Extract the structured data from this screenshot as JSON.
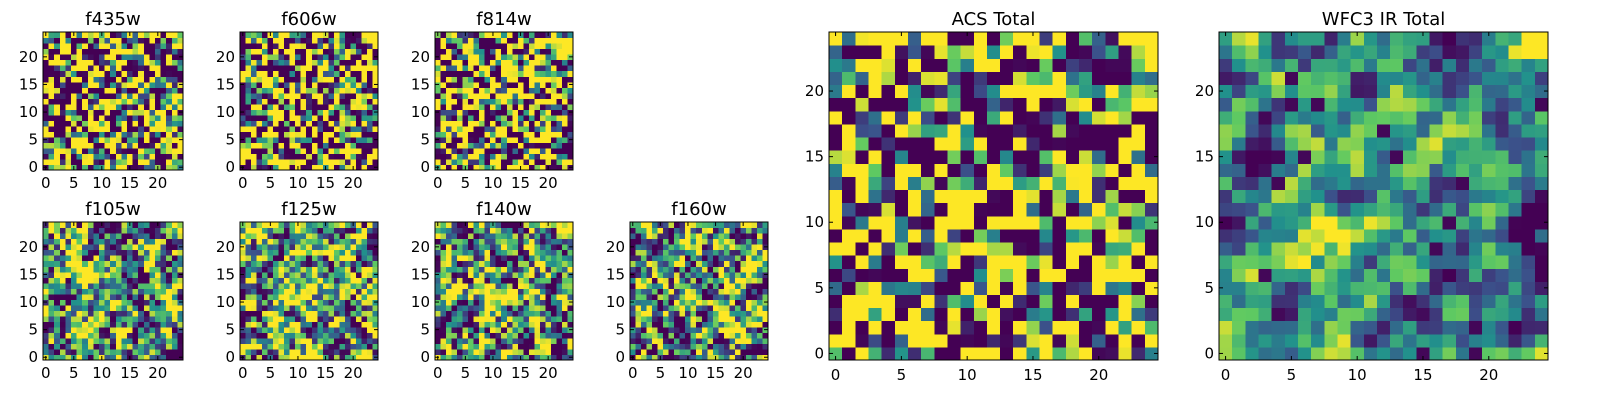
{
  "figure_type": "multi-panel image grid",
  "colormap": [
    "#440154",
    "#3b528b",
    "#21918c",
    "#5ec962",
    "#fde725"
  ],
  "frame_color": "#000000",
  "chart_data": [
    {
      "type": "heatmap",
      "title": "f435w",
      "grid": [
        25,
        25
      ],
      "xlim": [
        0,
        25
      ],
      "ylim": [
        0,
        25
      ],
      "xticks": [
        "0",
        "5",
        "10",
        "15",
        "20"
      ],
      "yticks": [
        "0",
        "5",
        "10",
        "15",
        "20"
      ],
      "seed": 11,
      "brightness": 0.62,
      "contrast": 0.55,
      "bright_corner": 0.0,
      "blob": 0.0,
      "smooth": 0
    },
    {
      "type": "heatmap",
      "title": "f606w",
      "grid": [
        25,
        25
      ],
      "xlim": [
        0,
        25
      ],
      "ylim": [
        0,
        25
      ],
      "xticks": [
        "0",
        "5",
        "10",
        "15",
        "20"
      ],
      "yticks": [
        "0",
        "5",
        "10",
        "15",
        "20"
      ],
      "seed": 23,
      "brightness": 0.55,
      "contrast": 0.55,
      "bright_corner": 0.6,
      "blob": 0.0,
      "smooth": 0
    },
    {
      "type": "heatmap",
      "title": "f814w",
      "grid": [
        25,
        25
      ],
      "xlim": [
        0,
        25
      ],
      "ylim": [
        0,
        25
      ],
      "xticks": [
        "0",
        "5",
        "10",
        "15",
        "20"
      ],
      "yticks": [
        "0",
        "5",
        "10",
        "15",
        "20"
      ],
      "seed": 37,
      "brightness": 0.53,
      "contrast": 0.55,
      "bright_corner": 0.6,
      "blob": 0.08,
      "smooth": 0
    },
    {
      "type": "heatmap",
      "title": "f105w",
      "grid": [
        25,
        25
      ],
      "xlim": [
        0,
        25
      ],
      "ylim": [
        0,
        25
      ],
      "xticks": [
        "0",
        "5",
        "10",
        "15",
        "20"
      ],
      "yticks": [
        "0",
        "5",
        "10",
        "15",
        "20"
      ],
      "seed": 41,
      "brightness": 0.5,
      "contrast": 0.42,
      "bright_corner": 0.55,
      "blob": 0.15,
      "smooth": 1
    },
    {
      "type": "heatmap",
      "title": "f125w",
      "grid": [
        25,
        25
      ],
      "xlim": [
        0,
        25
      ],
      "ylim": [
        0,
        25
      ],
      "xticks": [
        "0",
        "5",
        "10",
        "15",
        "20"
      ],
      "yticks": [
        "0",
        "5",
        "10",
        "15",
        "20"
      ],
      "seed": 53,
      "brightness": 0.6,
      "contrast": 0.42,
      "bright_corner": 0.55,
      "blob": 0.15,
      "smooth": 1
    },
    {
      "type": "heatmap",
      "title": "f140w",
      "grid": [
        25,
        25
      ],
      "xlim": [
        0,
        25
      ],
      "ylim": [
        0,
        25
      ],
      "xticks": [
        "0",
        "5",
        "10",
        "15",
        "20"
      ],
      "yticks": [
        "0",
        "5",
        "10",
        "15",
        "20"
      ],
      "seed": 67,
      "brightness": 0.5,
      "contrast": 0.45,
      "bright_corner": 0.55,
      "blob": 0.18,
      "smooth": 1
    },
    {
      "type": "heatmap",
      "title": "f160w",
      "grid": [
        25,
        25
      ],
      "xlim": [
        0,
        25
      ],
      "ylim": [
        0,
        25
      ],
      "xticks": [
        "0",
        "5",
        "10",
        "15",
        "20"
      ],
      "yticks": [
        "0",
        "5",
        "10",
        "15",
        "20"
      ],
      "seed": 79,
      "brightness": 0.5,
      "contrast": 0.45,
      "bright_corner": 0.55,
      "blob": 0.18,
      "smooth": 1
    },
    {
      "type": "heatmap",
      "title": "ACS Total",
      "grid": [
        25,
        25
      ],
      "xlim": [
        0,
        25
      ],
      "ylim": [
        0,
        25
      ],
      "xticks": [
        "0",
        "5",
        "10",
        "15",
        "20"
      ],
      "yticks": [
        "0",
        "5",
        "10",
        "15",
        "20"
      ],
      "seed": 97,
      "brightness": 0.55,
      "contrast": 0.42,
      "bright_corner": 0.6,
      "blob": 0.05,
      "smooth": 0
    },
    {
      "type": "heatmap",
      "title": "WFC3 IR Total",
      "grid": [
        25,
        25
      ],
      "xlim": [
        0,
        25
      ],
      "ylim": [
        0,
        25
      ],
      "xticks": [
        "0",
        "5",
        "10",
        "15",
        "20"
      ],
      "yticks": [
        "0",
        "5",
        "10",
        "15",
        "20"
      ],
      "seed": 113,
      "brightness": 0.48,
      "contrast": 0.3,
      "bright_corner": 0.7,
      "blob": 0.25,
      "smooth": 2
    }
  ]
}
